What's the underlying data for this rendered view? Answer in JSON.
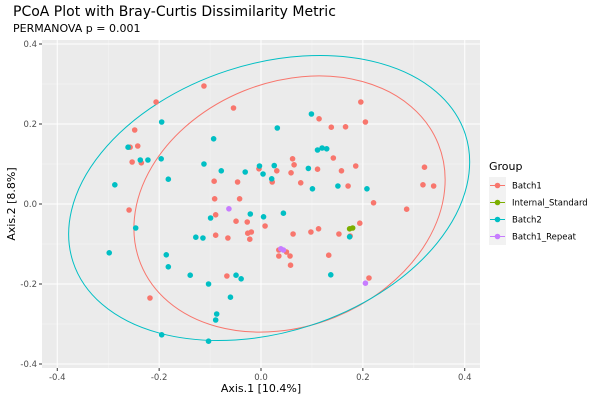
{
  "chart_data": {
    "type": "scatter",
    "title": "PCoA Plot with Bray-Curtis Dissimilarity Metric",
    "subtitle": "PERMANOVA p = 0.001",
    "xlabel": "Axis.1  [10.4%]",
    "ylabel": "Axis.2  [8.8%]",
    "xlim": [
      -0.43,
      0.43
    ],
    "ylim": [
      -0.41,
      0.41
    ],
    "x_ticks": [
      -0.4,
      -0.2,
      0.0,
      0.2,
      0.4
    ],
    "x_tick_labels": [
      "-0.4",
      "-0.2",
      "0.0",
      "0.2",
      "0.4"
    ],
    "y_ticks": [
      -0.4,
      -0.2,
      0.0,
      0.2,
      0.4
    ],
    "y_tick_labels": [
      "-0.4",
      "-0.2",
      "0.0",
      "0.2",
      "0.4"
    ],
    "grid": true,
    "legend_title": "Group",
    "legend_position": "right",
    "series": [
      {
        "name": "Batch1",
        "color": "#F8766D",
        "x": [
          -0.206,
          -0.112,
          -0.054,
          -0.248,
          -0.242,
          -0.253,
          -0.235,
          -0.257,
          -0.092,
          -0.046,
          -0.004,
          0.059,
          0.078,
          0.114,
          0.138,
          0.166,
          0.205,
          0.196,
          0.142,
          0.111,
          0.186,
          0.158,
          0.171,
          0.221,
          0.286,
          0.318,
          0.339,
          0.321,
          0.031,
          0.065,
          0.062,
          0.022,
          -0.042,
          -0.091,
          -0.089,
          -0.049,
          -0.027,
          -0.019,
          0.008,
          0.035,
          0.058,
          0.098,
          0.113,
          0.194,
          0.175,
          -0.026,
          0.063,
          0.05,
          0.057,
          0.133,
          0.153,
          -0.089,
          -0.065,
          -0.022,
          -0.218,
          -0.259,
          -0.067,
          0.212,
          0.035
        ],
        "y": [
          0.255,
          0.295,
          0.24,
          0.185,
          0.145,
          0.105,
          0.103,
          0.142,
          0.057,
          0.055,
          0.088,
          0.078,
          0.053,
          0.213,
          0.192,
          0.193,
          0.205,
          0.255,
          0.115,
          0.087,
          0.095,
          0.083,
          0.045,
          0.003,
          -0.013,
          0.048,
          0.045,
          0.092,
          0.083,
          0.098,
          0.113,
          0.055,
          0.013,
          0.013,
          -0.027,
          -0.043,
          -0.045,
          -0.07,
          -0.055,
          -0.13,
          -0.153,
          -0.07,
          -0.062,
          -0.048,
          -0.08,
          -0.073,
          -0.075,
          -0.12,
          -0.13,
          -0.128,
          -0.075,
          -0.078,
          -0.085,
          -0.088,
          -0.235,
          -0.015,
          -0.18,
          -0.185,
          -0.115
        ],
        "point_names": [
          "b1-1",
          "b1-2",
          "b1-3",
          "b1-4",
          "b1-5",
          "b1-6",
          "b1-7",
          "b1-8",
          "b1-9",
          "b1-10",
          "b1-11",
          "b1-12",
          "b1-13",
          "b1-14",
          "b1-15",
          "b1-16",
          "b1-17",
          "b1-18",
          "b1-19",
          "b1-20",
          "b1-21",
          "b1-22",
          "b1-23",
          "b1-24",
          "b1-25",
          "b1-26",
          "b1-27",
          "b1-28",
          "b1-29",
          "b1-30",
          "b1-31",
          "b1-32",
          "b1-33",
          "b1-34",
          "b1-35",
          "b1-36",
          "b1-37",
          "b1-38",
          "b1-39",
          "b1-40",
          "b1-41",
          "b1-42",
          "b1-43",
          "b1-44",
          "b1-45",
          "b1-46",
          "b1-47",
          "b1-48",
          "b1-49",
          "b1-50",
          "b1-51",
          "b1-52",
          "b1-53",
          "b1-54",
          "b1-55",
          "b1-56",
          "b1-57",
          "b1-58",
          "b1-59"
        ],
        "ellipse": {
          "cx": 0.056,
          "cy": 0.0,
          "rx": 0.315,
          "ry": 0.305,
          "angle": -22
        }
      },
      {
        "name": "Internal_Standard",
        "color": "#7CAE00",
        "x": [
          0.174,
          0.18
        ],
        "y": [
          -0.062,
          -0.06
        ],
        "point_names": [
          "is-1",
          "is-2"
        ]
      },
      {
        "name": "Batch2",
        "color": "#00BFC4",
        "x": [
          -0.195,
          -0.237,
          -0.222,
          -0.261,
          -0.287,
          -0.298,
          -0.195,
          -0.246,
          -0.182,
          -0.112,
          -0.078,
          -0.099,
          -0.128,
          -0.103,
          -0.089,
          -0.06,
          -0.031,
          -0.003,
          0.021,
          0.032,
          0.099,
          0.111,
          0.129,
          0.208,
          0.174,
          0.137,
          -0.139,
          -0.103,
          -0.182,
          -0.186,
          -0.049,
          -0.039,
          -0.021,
          0.005,
          -0.196,
          -0.087,
          -0.093,
          0.044,
          -0.114,
          0.026,
          0.004,
          0.101,
          0.12,
          0.093,
          0.151
        ],
        "y": [
          0.205,
          0.11,
          0.11,
          0.142,
          0.048,
          -0.122,
          -0.327,
          -0.06,
          0.062,
          0.1,
          0.083,
          -0.035,
          -0.083,
          -0.2,
          -0.29,
          -0.233,
          0.08,
          0.095,
          0.063,
          0.19,
          0.225,
          0.135,
          0.138,
          0.038,
          -0.082,
          -0.177,
          -0.178,
          -0.343,
          -0.157,
          -0.127,
          -0.178,
          -0.187,
          -0.025,
          -0.032,
          0.113,
          -0.275,
          0.163,
          -0.023,
          -0.085,
          0.096,
          0.075,
          0.038,
          0.14,
          0.089,
          0.045
        ],
        "point_names": [
          "b2-1",
          "b2-2",
          "b2-3",
          "b2-4",
          "b2-5",
          "b2-6",
          "b2-7",
          "b2-8",
          "b2-9",
          "b2-10",
          "b2-11",
          "b2-12",
          "b2-13",
          "b2-14",
          "b2-15",
          "b2-16",
          "b2-17",
          "b2-18",
          "b2-19",
          "b2-20",
          "b2-21",
          "b2-22",
          "b2-23",
          "b2-24",
          "b2-25",
          "b2-26",
          "b2-27",
          "b2-28",
          "b2-29",
          "b2-30",
          "b2-31",
          "b2-32",
          "b2-33",
          "b2-34",
          "b2-35",
          "b2-36",
          "b2-37",
          "b2-38",
          "b2-39",
          "b2-40",
          "b2-41",
          "b2-42",
          "b2-43",
          "b2-44",
          "b2-45"
        ],
        "ellipse": {
          "cx": 0.016,
          "cy": 0.015,
          "rx": 0.405,
          "ry": 0.335,
          "angle": -18
        }
      },
      {
        "name": "Batch1_Repeat",
        "color": "#C77CFF",
        "x": [
          -0.063,
          0.039,
          0.044,
          0.205
        ],
        "y": [
          -0.012,
          -0.112,
          -0.115,
          -0.198
        ],
        "point_names": [
          "br-1",
          "br-2",
          "br-3",
          "br-4"
        ]
      }
    ]
  }
}
